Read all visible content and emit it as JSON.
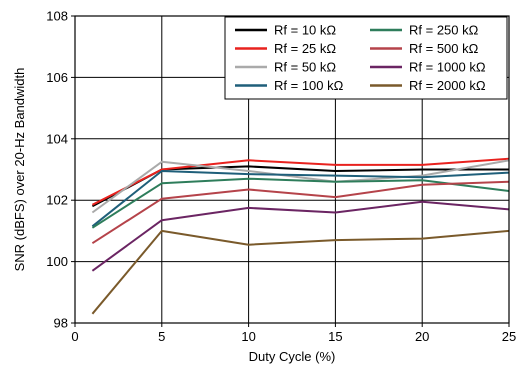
{
  "chart_data": {
    "type": "line",
    "xlabel": "Duty Cycle (%)",
    "ylabel": "SNR (dBFS) over 20-Hz Bandwidth",
    "xlim": [
      0,
      25
    ],
    "ylim": [
      98,
      108
    ],
    "xticks": [
      0,
      5,
      10,
      15,
      20,
      25
    ],
    "yticks": [
      98,
      100,
      102,
      104,
      106,
      108
    ],
    "grid": true,
    "legend_position": "top-right",
    "x": [
      1,
      5,
      10,
      15,
      20,
      25
    ],
    "series": [
      {
        "name": "Rf = 10 kΩ",
        "color": "#000000",
        "values": [
          101.8,
          103.0,
          103.1,
          102.95,
          103.0,
          103.0
        ]
      },
      {
        "name": "Rf = 25 kΩ",
        "color": "#e8221e",
        "values": [
          101.85,
          103.0,
          103.3,
          103.15,
          103.15,
          103.35
        ]
      },
      {
        "name": "Rf = 50 kΩ",
        "color": "#aaaaaa",
        "values": [
          101.6,
          103.25,
          102.95,
          102.6,
          102.8,
          103.3
        ]
      },
      {
        "name": "Rf = 100 kΩ",
        "color": "#1f5f7a",
        "values": [
          101.15,
          102.95,
          102.85,
          102.8,
          102.75,
          102.9
        ]
      },
      {
        "name": "Rf = 250 kΩ",
        "color": "#2e7d5b",
        "values": [
          101.1,
          102.55,
          102.7,
          102.6,
          102.65,
          102.3
        ]
      },
      {
        "name": "Rf = 500 kΩ",
        "color": "#b5434a",
        "values": [
          100.6,
          102.05,
          102.35,
          102.1,
          102.5,
          102.6
        ]
      },
      {
        "name": "Rf = 1000 kΩ",
        "color": "#6b2563",
        "values": [
          99.7,
          101.35,
          101.75,
          101.6,
          101.95,
          101.7
        ]
      },
      {
        "name": "Rf = 2000 kΩ",
        "color": "#7a5a2b",
        "values": [
          98.3,
          101.0,
          100.55,
          100.7,
          100.75,
          101.0
        ]
      }
    ]
  }
}
